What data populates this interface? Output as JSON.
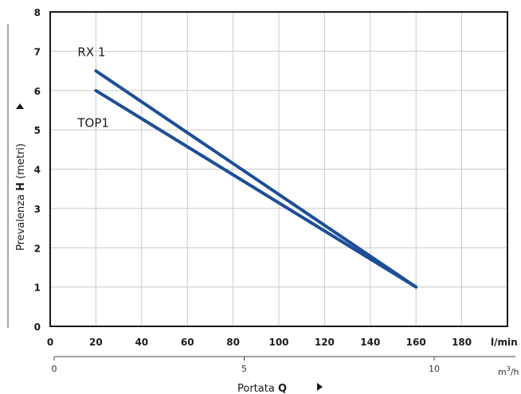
{
  "chart_data": {
    "type": "line",
    "title": "",
    "ylabel": "Prevalenza H (metri)",
    "ylabel_parts": [
      "Prevalenza ",
      "H",
      " (metri)"
    ],
    "xlabel": "Portata Q",
    "xlabel_parts": [
      "Portata ",
      "Q"
    ],
    "x_unit": "l/min",
    "x2_unit": "m³/h",
    "x2_unit_base": "m",
    "x2_unit_sup": "3",
    "x2_unit_tail": "/h",
    "xlim": [
      0,
      200
    ],
    "ylim": [
      0,
      8
    ],
    "x_ticks": [
      "0",
      "20",
      "40",
      "60",
      "80",
      "100",
      "120",
      "140",
      "160",
      "180"
    ],
    "y_ticks": [
      "0",
      "1",
      "2",
      "3",
      "4",
      "5",
      "6",
      "7",
      "8"
    ],
    "x2_ticks": [
      "0",
      "5",
      "10"
    ],
    "grid": true,
    "series": [
      {
        "name": "RX 1",
        "x": [
          20,
          160
        ],
        "y": [
          6.5,
          1.0
        ],
        "color": "#1d4e96"
      },
      {
        "name": "TOP1",
        "x": [
          20,
          160
        ],
        "y": [
          6.0,
          1.0
        ],
        "color": "#1d4e96"
      }
    ]
  }
}
